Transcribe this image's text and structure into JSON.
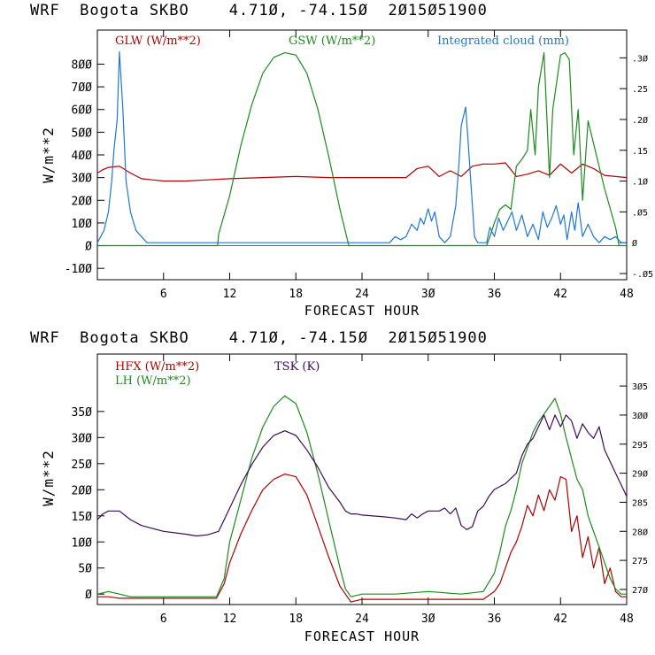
{
  "panels": {
    "top_title": "WRF  Bogota SKBO    4.71Ø, -74.15Ø  2Ø15Ø51900",
    "bottom_title": "WRF  Bogota SKBO    4.71Ø, -74.15Ø  2Ø15Ø51900"
  },
  "chart_data": [
    {
      "type": "line",
      "title": "WRF  Bogota SKBO    4.71Ø, -74.15Ø  2Ø15Ø51900",
      "xlabel": "FORECAST HOUR",
      "ylabel": "W/m**2",
      "xlim": [
        0,
        48
      ],
      "ylim": [
        -150,
        950
      ],
      "y2lim": [
        -0.06,
        0.345
      ],
      "x_ticks": [
        6,
        12,
        18,
        24,
        30,
        36,
        42,
        48
      ],
      "x_tick_labels": [
        "6",
        "12",
        "18",
        "24",
        "3Ø",
        "36",
        "42",
        "48"
      ],
      "y_ticks": [
        -100,
        0,
        100,
        200,
        300,
        400,
        500,
        600,
        700,
        800
      ],
      "y_tick_labels": [
        "-1ØØ",
        "Ø",
        "1ØØ",
        "2ØØ",
        "3ØØ",
        "4ØØ",
        "5ØØ",
        "6ØØ",
        "7ØØ",
        "8ØØ"
      ],
      "y2_ticks": [
        -0.05,
        0,
        0.05,
        0.1,
        0.15,
        0.2,
        0.25,
        0.3
      ],
      "y2_tick_labels": [
        "-.Ø5",
        "Ø",
        ".Ø5",
        ".1Ø",
        ".15",
        ".2Ø",
        ".25",
        ".3Ø"
      ],
      "zero_line": 0,
      "series": [
        {
          "name": "GLW (W/m**2)",
          "color": "#b00000",
          "axis": "left",
          "x": [
            0,
            0.5,
            1,
            2,
            3,
            4,
            5,
            6,
            8,
            10,
            12,
            15,
            18,
            21,
            24,
            26,
            27,
            28,
            29,
            30,
            31,
            32,
            33,
            34,
            35,
            36,
            37,
            38,
            39,
            40,
            41,
            42,
            43,
            44,
            45,
            46,
            47,
            48
          ],
          "values": [
            320,
            335,
            345,
            350,
            320,
            295,
            290,
            285,
            285,
            290,
            295,
            300,
            305,
            300,
            300,
            300,
            300,
            300,
            340,
            350,
            305,
            330,
            305,
            350,
            360,
            360,
            365,
            305,
            315,
            330,
            310,
            360,
            320,
            360,
            340,
            310,
            305,
            300
          ]
        },
        {
          "name": "GSW (W/m**2)",
          "color": "#1e8a1e",
          "axis": "left",
          "x": [
            0,
            10.9,
            11,
            12,
            13,
            14,
            15,
            16,
            17,
            18,
            19,
            20,
            21,
            22,
            22.8,
            35.3,
            35.6,
            36,
            36.5,
            37,
            37.5,
            38,
            38.5,
            39,
            39.3,
            39.7,
            40,
            40.5,
            41,
            41.3,
            42,
            42.4,
            42.8,
            43.2,
            43.6,
            44,
            44.5,
            45,
            46,
            47,
            47.3,
            48
          ],
          "values": [
            0,
            0,
            50,
            220,
            440,
            620,
            760,
            830,
            850,
            840,
            760,
            600,
            390,
            160,
            0,
            0,
            40,
            100,
            160,
            180,
            160,
            350,
            380,
            420,
            600,
            400,
            700,
            850,
            300,
            600,
            840,
            850,
            820,
            400,
            600,
            200,
            550,
            450,
            250,
            80,
            0,
            0
          ]
        },
        {
          "name": "Integrated cloud (mm)",
          "color": "#1e78d2",
          "axis": "right",
          "x": [
            0,
            0.6,
            1,
            1.3,
            1.5,
            1.8,
            2,
            2.3,
            2.6,
            3,
            3.5,
            4,
            4.5,
            5,
            26.5,
            27,
            27.5,
            28,
            28.5,
            29,
            29.3,
            29.6,
            30,
            30.3,
            30.6,
            31,
            31.5,
            32,
            32.5,
            32.8,
            33,
            33.4,
            33.6,
            33.9,
            34.2,
            34.5,
            35,
            35.3,
            35.6,
            36,
            36.4,
            36.8,
            37.2,
            37.6,
            38,
            38.5,
            39,
            39.5,
            40,
            40.4,
            40.8,
            41.2,
            41.6,
            42,
            42.3,
            42.6,
            43,
            43.3,
            43.6,
            44,
            44.5,
            45,
            45.5,
            46,
            46.5,
            47,
            47.5,
            48
          ],
          "values": [
            0,
            0.02,
            0.05,
            0.1,
            0.15,
            0.2,
            0.31,
            0.22,
            0.1,
            0.05,
            0.02,
            0.01,
            0,
            0,
            0,
            0.01,
            0.005,
            0.01,
            0.03,
            0.02,
            0.04,
            0.03,
            0.055,
            0.035,
            0.05,
            0.01,
            0,
            0.01,
            0.06,
            0.13,
            0.19,
            0.22,
            0.17,
            0.09,
            0.01,
            0,
            0,
            0,
            0.025,
            0.01,
            0.04,
            0.02,
            0.035,
            0.05,
            0.02,
            0.045,
            0.01,
            0.03,
            0.005,
            0.05,
            0.025,
            0.04,
            0.06,
            0.03,
            0.045,
            0.005,
            0.05,
            0.02,
            0.065,
            0.01,
            0.03,
            0.01,
            0,
            0.01,
            0.005,
            0.01,
            0,
            0
          ]
        }
      ]
    },
    {
      "type": "line",
      "title": "WRF  Bogota SKBO    4.71Ø, -74.15Ø  2Ø15Ø51900",
      "xlabel": "FORECAST HOUR",
      "ylabel": "W/m**2",
      "xlim": [
        0,
        48
      ],
      "ylim": [
        -20,
        460
      ],
      "y2lim": [
        267.4,
        310.5
      ],
      "x_ticks": [
        6,
        12,
        18,
        24,
        30,
        36,
        42,
        48
      ],
      "x_tick_labels": [
        "6",
        "12",
        "18",
        "24",
        "3Ø",
        "36",
        "42",
        "48"
      ],
      "y_ticks": [
        0,
        50,
        100,
        150,
        200,
        250,
        300,
        350
      ],
      "y_tick_labels": [
        "Ø",
        "5Ø",
        "1ØØ",
        "15Ø",
        "2ØØ",
        "25Ø",
        "3ØØ",
        "35Ø"
      ],
      "y2_ticks": [
        270,
        275,
        280,
        285,
        290,
        295,
        300,
        305
      ],
      "y2_tick_labels": [
        "27Ø",
        "275",
        "28Ø",
        "285",
        "29Ø",
        "295",
        "3ØØ",
        "3Ø5"
      ],
      "series": [
        {
          "name": "HFX (W/m**2)",
          "color": "#b00000",
          "axis": "left",
          "x": [
            0,
            1,
            2,
            3,
            6,
            10,
            10.8,
            11.5,
            12,
            13,
            14,
            15,
            16,
            17,
            18,
            19,
            20,
            21,
            22,
            22.5,
            23,
            24,
            30,
            33,
            35,
            36,
            36.5,
            37,
            37.5,
            38,
            38.5,
            39,
            39.5,
            40,
            40.5,
            41,
            41.5,
            42,
            42.5,
            43,
            43.5,
            44,
            44.5,
            45,
            45.5,
            46,
            46.5,
            47,
            47.5,
            48
          ],
          "values": [
            -5,
            -5,
            -8,
            -8,
            -8,
            -8,
            -8,
            20,
            60,
            115,
            160,
            200,
            220,
            230,
            225,
            190,
            130,
            70,
            15,
            0,
            -15,
            -10,
            -10,
            -10,
            -10,
            5,
            20,
            50,
            80,
            100,
            130,
            170,
            150,
            190,
            160,
            200,
            180,
            225,
            220,
            120,
            150,
            70,
            110,
            50,
            90,
            20,
            50,
            5,
            -5,
            -5
          ]
        },
        {
          "name": "LH (W/m**2)",
          "color": "#1e8a1e",
          "axis": "left",
          "x": [
            0,
            1,
            2,
            3,
            6,
            10,
            10.8,
            11.5,
            12,
            13,
            14,
            15,
            16,
            17,
            18,
            19,
            20,
            21,
            22,
            22.5,
            23,
            24,
            27,
            30,
            33,
            35,
            36,
            36.5,
            37,
            37.5,
            38,
            38.5,
            39,
            39.5,
            40,
            40.5,
            41,
            41.5,
            42,
            42.5,
            43,
            43.5,
            44,
            44.5,
            45,
            45.5,
            46,
            46.5,
            47,
            47.5,
            48
          ],
          "values": [
            0,
            5,
            0,
            -5,
            -5,
            -5,
            -5,
            30,
            100,
            180,
            260,
            320,
            360,
            380,
            365,
            310,
            230,
            140,
            50,
            10,
            -5,
            0,
            0,
            5,
            0,
            5,
            40,
            80,
            130,
            160,
            200,
            250,
            280,
            310,
            330,
            345,
            360,
            375,
            345,
            300,
            260,
            220,
            200,
            150,
            120,
            90,
            60,
            30,
            10,
            0,
            0
          ]
        },
        {
          "name": "TSK (K)",
          "color": "#3c0a5a",
          "axis": "right",
          "x": [
            0,
            0.5,
            1,
            2,
            3,
            4,
            6,
            8,
            9,
            10,
            11,
            11.5,
            12,
            13,
            14,
            15,
            16,
            17,
            18,
            19,
            20,
            21,
            22,
            22.5,
            23,
            23.5,
            24,
            26,
            27,
            28,
            28.5,
            29,
            29.5,
            30,
            31,
            31.5,
            32,
            32.5,
            33,
            33.5,
            34,
            34.5,
            35,
            35.5,
            36,
            37,
            38,
            38.5,
            39,
            39.5,
            40,
            40.5,
            41,
            41.5,
            42,
            42.5,
            43,
            43.5,
            44,
            44.5,
            45,
            45.5,
            46,
            46.5,
            47,
            47.5,
            48
          ],
          "values": [
            282,
            283,
            283.5,
            283.5,
            282,
            281,
            280,
            279.5,
            279.2,
            279.4,
            280,
            282,
            284,
            288,
            291.5,
            294.5,
            296.5,
            297.3,
            296.5,
            294,
            291,
            287.5,
            285,
            283.5,
            283,
            283,
            282.8,
            282.5,
            282.3,
            282,
            283,
            282.3,
            283,
            283.5,
            283.5,
            284,
            283,
            284,
            281,
            280.3,
            280.8,
            283.5,
            284.3,
            286,
            287.2,
            288.2,
            290,
            293,
            295,
            296,
            298,
            300,
            297.5,
            300,
            298,
            300,
            299,
            296,
            298.5,
            297,
            296,
            298,
            294,
            292,
            290,
            288,
            286
          ]
        }
      ]
    }
  ]
}
